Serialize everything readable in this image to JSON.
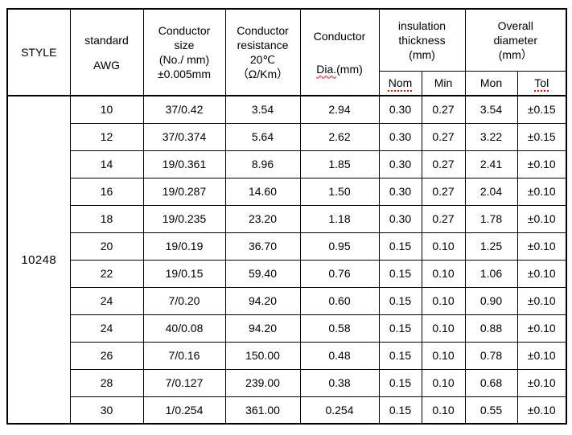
{
  "colors": {
    "background": "#ffffff",
    "border": "#000000",
    "text": "#000000",
    "spellcheck_underline": "#ff0000"
  },
  "table": {
    "style_header": "STYLE",
    "style_value": "10248",
    "header": {
      "awg_lines": [
        "standard",
        "AWG"
      ],
      "size_lines": [
        "Conductor",
        "size",
        "(No./ mm)",
        "±0.005mm"
      ],
      "resistance_lines": [
        "Conductor",
        "resistance",
        "20℃",
        "（Ω/Km）"
      ],
      "dia_line1": "Conductor",
      "dia_word": "Dia.",
      "dia_suffix": "(mm)",
      "insulation_lines": [
        "insulation",
        "thickness",
        "(mm)"
      ],
      "overall_lines": [
        "Overall",
        "diameter",
        "(mm）"
      ],
      "sub_nom": "Nom",
      "sub_min": "Min",
      "sub_mon": "Mon",
      "sub_tol": "Tol"
    },
    "column_keys": [
      "awg",
      "size",
      "resistance",
      "dia",
      "nom",
      "min",
      "mon",
      "tol"
    ],
    "rows": [
      {
        "awg": "10",
        "size": "37/0.42",
        "resistance": "3.54",
        "dia": "2.94",
        "nom": "0.30",
        "min": "0.27",
        "mon": "3.54",
        "tol": "±0.15"
      },
      {
        "awg": "12",
        "size": "37/0.374",
        "resistance": "5.64",
        "dia": "2.62",
        "nom": "0.30",
        "min": "0.27",
        "mon": "3.22",
        "tol": "±0.15"
      },
      {
        "awg": "14",
        "size": "19/0.361",
        "resistance": "8.96",
        "dia": "1.85",
        "nom": "0.30",
        "min": "0.27",
        "mon": "2.41",
        "tol": "±0.10"
      },
      {
        "awg": "16",
        "size": "19/0.287",
        "resistance": "14.60",
        "dia": "1.50",
        "nom": "0.30",
        "min": "0.27",
        "mon": "2.04",
        "tol": "±0.10"
      },
      {
        "awg": "18",
        "size": "19/0.235",
        "resistance": "23.20",
        "dia": "1.18",
        "nom": "0.30",
        "min": "0.27",
        "mon": "1.78",
        "tol": "±0.10"
      },
      {
        "awg": "20",
        "size": "19/0.19",
        "resistance": "36.70",
        "dia": "0.95",
        "nom": "0.15",
        "min": "0.10",
        "mon": "1.25",
        "tol": "±0.10"
      },
      {
        "awg": "22",
        "size": "19/0.15",
        "resistance": "59.40",
        "dia": "0.76",
        "nom": "0.15",
        "min": "0.10",
        "mon": "1.06",
        "tol": "±0.10"
      },
      {
        "awg": "24",
        "size": "7/0.20",
        "resistance": "94.20",
        "dia": "0.60",
        "nom": "0.15",
        "min": "0.10",
        "mon": "0.90",
        "tol": "±0.10"
      },
      {
        "awg": "24",
        "size": "40/0.08",
        "resistance": "94.20",
        "dia": "0.58",
        "nom": "0.15",
        "min": "0.10",
        "mon": "0.88",
        "tol": "±0.10"
      },
      {
        "awg": "26",
        "size": "7/0.16",
        "resistance": "150.00",
        "dia": "0.48",
        "nom": "0.15",
        "min": "0.10",
        "mon": "0.78",
        "tol": "±0.10"
      },
      {
        "awg": "28",
        "size": "7/0.127",
        "resistance": "239.00",
        "dia": "0.38",
        "nom": "0.15",
        "min": "0.10",
        "mon": "0.68",
        "tol": "±0.10"
      },
      {
        "awg": "30",
        "size": "1/0.254",
        "resistance": "361.00",
        "dia": "0.254",
        "nom": "0.15",
        "min": "0.10",
        "mon": "0.55",
        "tol": "±0.10"
      }
    ]
  }
}
